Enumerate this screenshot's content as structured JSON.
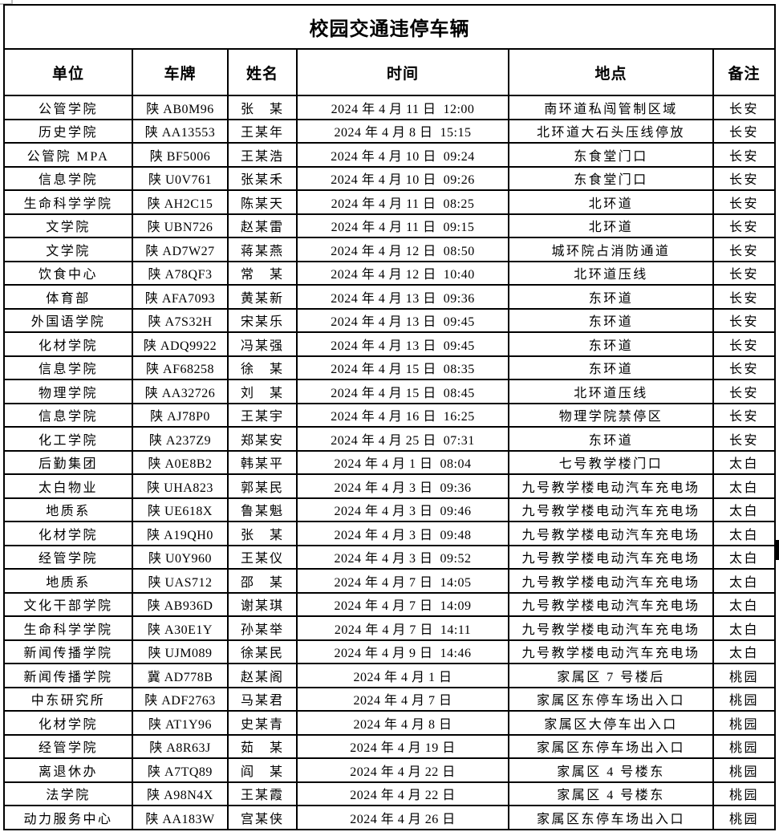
{
  "title": "校园交通违停车辆",
  "colors": {
    "text": "#000000",
    "border": "#000000",
    "background": "#ffffff",
    "corner_artifact": "#c0c0c0",
    "scrollbar_artifact": "#000000"
  },
  "table": {
    "headers": [
      "单位",
      "车牌",
      "姓名",
      "时间",
      "地点",
      "备注"
    ],
    "rows": [
      {
        "unit": "公管学院",
        "plate": "陕 AB0M96",
        "name": "张　某",
        "time": "2024 年 4 月 11 日  12:00",
        "location": "南环道私闯管制区域",
        "note": "长安"
      },
      {
        "unit": "历史学院",
        "plate": "陕 AA13553",
        "name": "王某年",
        "time": "2024 年 4 月 8 日  15:15",
        "location": "北环道大石头压线停放",
        "note": "长安"
      },
      {
        "unit": "公管院 MPA",
        "plate": "陕 BF5006",
        "name": "王某浩",
        "time": "2024 年 4 月 10 日  09:24",
        "location": "东食堂门口",
        "note": "长安"
      },
      {
        "unit": "信息学院",
        "plate": "陕 U0V761",
        "name": "张某禾",
        "time": "2024 年 4 月 10 日  09:26",
        "location": "东食堂门口",
        "note": "长安"
      },
      {
        "unit": "生命科学学院",
        "plate": "陕 AH2C15",
        "name": "陈某天",
        "time": "2024 年 4 月 11 日  08:25",
        "location": "北环道",
        "note": "长安"
      },
      {
        "unit": "文学院",
        "plate": "陕 UBN726",
        "name": "赵某雷",
        "time": "2024 年 4 月 11 日  09:15",
        "location": "北环道",
        "note": "长安"
      },
      {
        "unit": "文学院",
        "plate": "陕 AD7W27",
        "name": "蒋某燕",
        "time": "2024 年 4 月 12 日  08:50",
        "location": "城环院占消防通道",
        "note": "长安"
      },
      {
        "unit": "饮食中心",
        "plate": "陕 A78QF3",
        "name": "常　某",
        "time": "2024 年 4 月 12 日  10:40",
        "location": "北环道压线",
        "note": "长安"
      },
      {
        "unit": "体育部",
        "plate": "陕 AFA7093",
        "name": "黄某新",
        "time": "2024 年 4 月 13 日  09:36",
        "location": "东环道",
        "note": "长安"
      },
      {
        "unit": "外国语学院",
        "plate": "陕 A7S32H",
        "name": "宋某乐",
        "time": "2024 年 4 月 13 日  09:45",
        "location": "东环道",
        "note": "长安"
      },
      {
        "unit": "化材学院",
        "plate": "陕 ADQ9922",
        "name": "冯某强",
        "time": "2024 年 4 月 13 日  09:45",
        "location": "东环道",
        "note": "长安"
      },
      {
        "unit": "信息学院",
        "plate": "陕 AF68258",
        "name": "徐　某",
        "time": "2024 年 4 月 15 日  08:35",
        "location": "东环道",
        "note": "长安"
      },
      {
        "unit": "物理学院",
        "plate": "陕 AA32726",
        "name": "刘　某",
        "time": "2024 年 4 月 15 日  08:45",
        "location": "北环道压线",
        "note": "长安"
      },
      {
        "unit": "信息学院",
        "plate": "陕 AJ78P0",
        "name": "王某宇",
        "time": "2024 年 4 月 16 日  16:25",
        "location": "物理学院禁停区",
        "note": "长安"
      },
      {
        "unit": "化工学院",
        "plate": "陕 A237Z9",
        "name": "郑某安",
        "time": "2024 年 4 月 25 日  07:31",
        "location": "东环道",
        "note": "长安"
      },
      {
        "unit": "后勤集团",
        "plate": "陕 A0E8B2",
        "name": "韩某平",
        "time": "2024 年 4 月 1 日  08:04",
        "location": "七号教学楼门口",
        "note": "太白"
      },
      {
        "unit": "太白物业",
        "plate": "陕 UHA823",
        "name": "郭某民",
        "time": "2024 年 4 月 3 日  09:36",
        "location": "九号教学楼电动汽车充电场",
        "note": "太白"
      },
      {
        "unit": "地质系",
        "plate": "陕 UE618X",
        "name": "鲁某魁",
        "time": "2024 年 4 月 3 日  09:46",
        "location": "九号教学楼电动汽车充电场",
        "note": "太白"
      },
      {
        "unit": "化材学院",
        "plate": "陕 A19QH0",
        "name": "张　某",
        "time": "2024 年 4 月 3 日  09:48",
        "location": "九号教学楼电动汽车充电场",
        "note": "太白"
      },
      {
        "unit": "经管学院",
        "plate": "陕 U0Y960",
        "name": "王某仪",
        "time": "2024 年 4 月 3 日  09:52",
        "location": "九号教学楼电动汽车充电场",
        "note": "太白"
      },
      {
        "unit": "地质系",
        "plate": "陕 UAS712",
        "name": "邵　某",
        "time": "2024 年 4 月 7 日  14:05",
        "location": "九号教学楼电动汽车充电场",
        "note": "太白"
      },
      {
        "unit": "文化干部学院",
        "plate": "陕 AB936D",
        "name": "谢某琪",
        "time": "2024 年 4 月 7 日  14:09",
        "location": "九号教学楼电动汽车充电场",
        "note": "太白"
      },
      {
        "unit": "生命科学学院",
        "plate": "陕 A30E1Y",
        "name": "孙某举",
        "time": "2024 年 4 月 7 日  14:11",
        "location": "九号教学楼电动汽车充电场",
        "note": "太白"
      },
      {
        "unit": "新闻传播学院",
        "plate": "陕 UJM089",
        "name": "徐某民",
        "time": "2024 年 4 月 9 日  14:46",
        "location": "九号教学楼电动汽车充电场",
        "note": "太白"
      },
      {
        "unit": "新闻传播学院",
        "plate": "冀 AD778B",
        "name": "赵某阁",
        "time": "2024 年 4 月 1 日",
        "location": "家属区 7 号楼后",
        "note": "桃园"
      },
      {
        "unit": "中东研究所",
        "plate": "陕 ADF2763",
        "name": "马某君",
        "time": "2024 年 4 月 7 日",
        "location": "家属区东停车场出入口",
        "note": "桃园"
      },
      {
        "unit": "化材学院",
        "plate": "陕 AT1Y96",
        "name": "史某青",
        "time": "2024 年 4 月 8 日",
        "location": "家属区大停车出入口",
        "note": "桃园"
      },
      {
        "unit": "经管学院",
        "plate": "陕 A8R63J",
        "name": "茹　某",
        "time": "2024 年 4 月 19 日",
        "location": "家属区东停车场出入口",
        "note": "桃园"
      },
      {
        "unit": "离退休办",
        "plate": "陕 A7TQ89",
        "name": "阎　某",
        "time": "2024 年 4 月 22 日",
        "location": "家属区 4 号楼东",
        "note": "桃园"
      },
      {
        "unit": "法学院",
        "plate": "陕 A98N4X",
        "name": "王某霞",
        "time": "2024 年 4 月 22 日",
        "location": "家属区 4 号楼东",
        "note": "桃园"
      },
      {
        "unit": "动力服务中心",
        "plate": "陕 AA183W",
        "name": "宫某侠",
        "time": "2024 年 4 月 26 日",
        "location": "家属区东停车场出入口",
        "note": "桃园"
      }
    ]
  }
}
